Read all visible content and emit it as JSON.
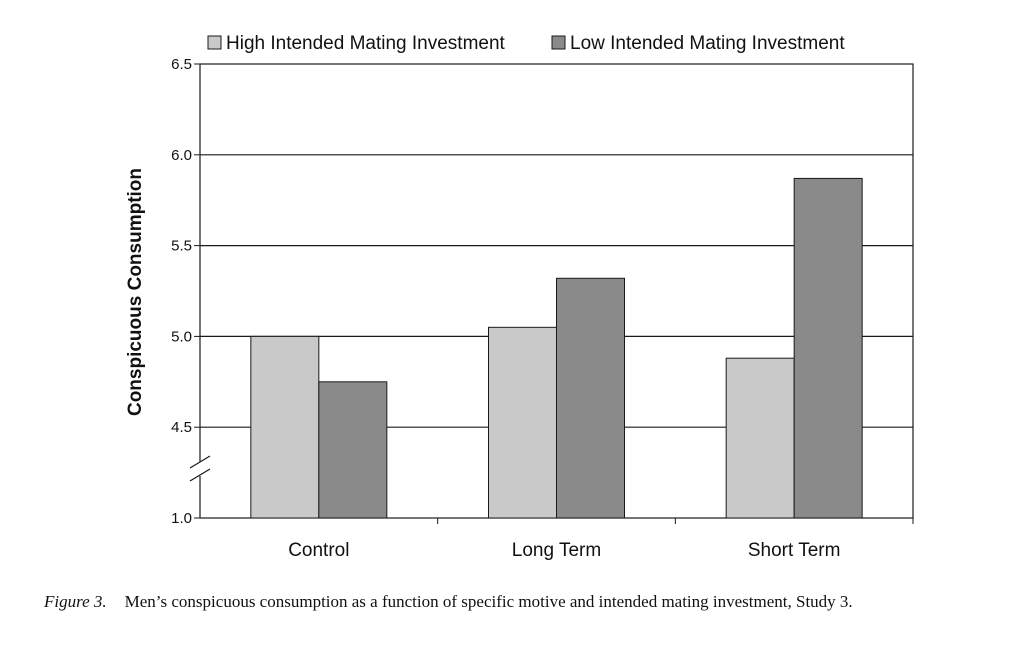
{
  "chart_data": {
    "type": "bar",
    "categories": [
      "Control",
      "Long Term",
      "Short Term"
    ],
    "series": [
      {
        "name": "High Intended Mating Investment",
        "values": [
          5.0,
          5.05,
          4.88
        ],
        "color": "#c9c9c9"
      },
      {
        "name": "Low Intended Mating Investment",
        "values": [
          4.75,
          5.32,
          5.87
        ],
        "color": "#8a8a8a"
      }
    ],
    "ylabel": "Conspicuous Consumption",
    "xlabel": "",
    "ylim": [
      4.0,
      6.5
    ],
    "y_ticks": [
      4.5,
      5.0,
      5.5,
      6.0,
      6.5
    ],
    "y_tick_labels": [
      "4.5",
      "5.0",
      "5.5",
      "6.0",
      "6.5"
    ],
    "y_axis_bottom_label": "1.0",
    "axis_break": true,
    "grid": true,
    "legend_position": "top"
  },
  "caption": {
    "figure_label": "Figure 3.",
    "text": "Men’s conspicuous consumption as a function of specific motive and intended mating investment, Study 3."
  }
}
